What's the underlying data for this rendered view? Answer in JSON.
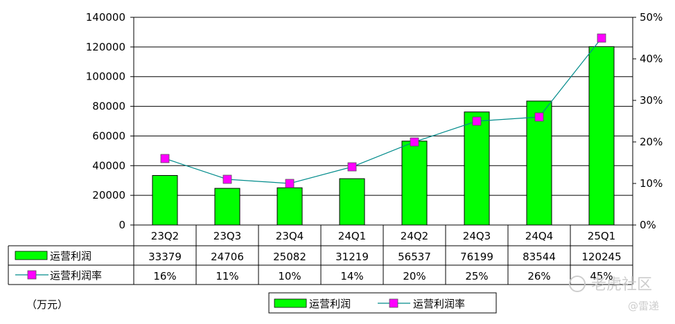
{
  "unit_label": "（万元）",
  "watermark": {
    "text": "老虎社区",
    "sub": "@雷递"
  },
  "chart_data": {
    "type": "bar",
    "categories": [
      "23Q2",
      "23Q3",
      "23Q4",
      "24Q1",
      "24Q2",
      "24Q3",
      "24Q4",
      "25Q1"
    ],
    "series": [
      {
        "name": "运营利润",
        "kind": "bar",
        "axis": "left",
        "values": [
          33379,
          24706,
          25082,
          31219,
          56537,
          76199,
          83544,
          120245
        ],
        "labels": [
          "33379",
          "24706",
          "25082",
          "31219",
          "56537",
          "76199",
          "83544",
          "120245"
        ],
        "color": "#00ff00"
      },
      {
        "name": "运营利润率",
        "kind": "line",
        "axis": "right",
        "values": [
          16,
          11,
          10,
          14,
          20,
          25,
          26,
          45
        ],
        "labels": [
          "16%",
          "11%",
          "10%",
          "14%",
          "20%",
          "25%",
          "26%",
          "45%"
        ],
        "color": "#008b8b",
        "marker_color": "#ff00ff"
      }
    ],
    "y_left": {
      "ylim": [
        0,
        140000
      ],
      "ticks": [
        "0",
        "20000",
        "40000",
        "60000",
        "80000",
        "100000",
        "120000",
        "140000"
      ]
    },
    "y_right": {
      "ylim": [
        0,
        50
      ],
      "ticks": [
        "0%",
        "10%",
        "20%",
        "30%",
        "40%",
        "50%"
      ]
    },
    "grid": true,
    "legend": "bottom",
    "data_table": true
  }
}
